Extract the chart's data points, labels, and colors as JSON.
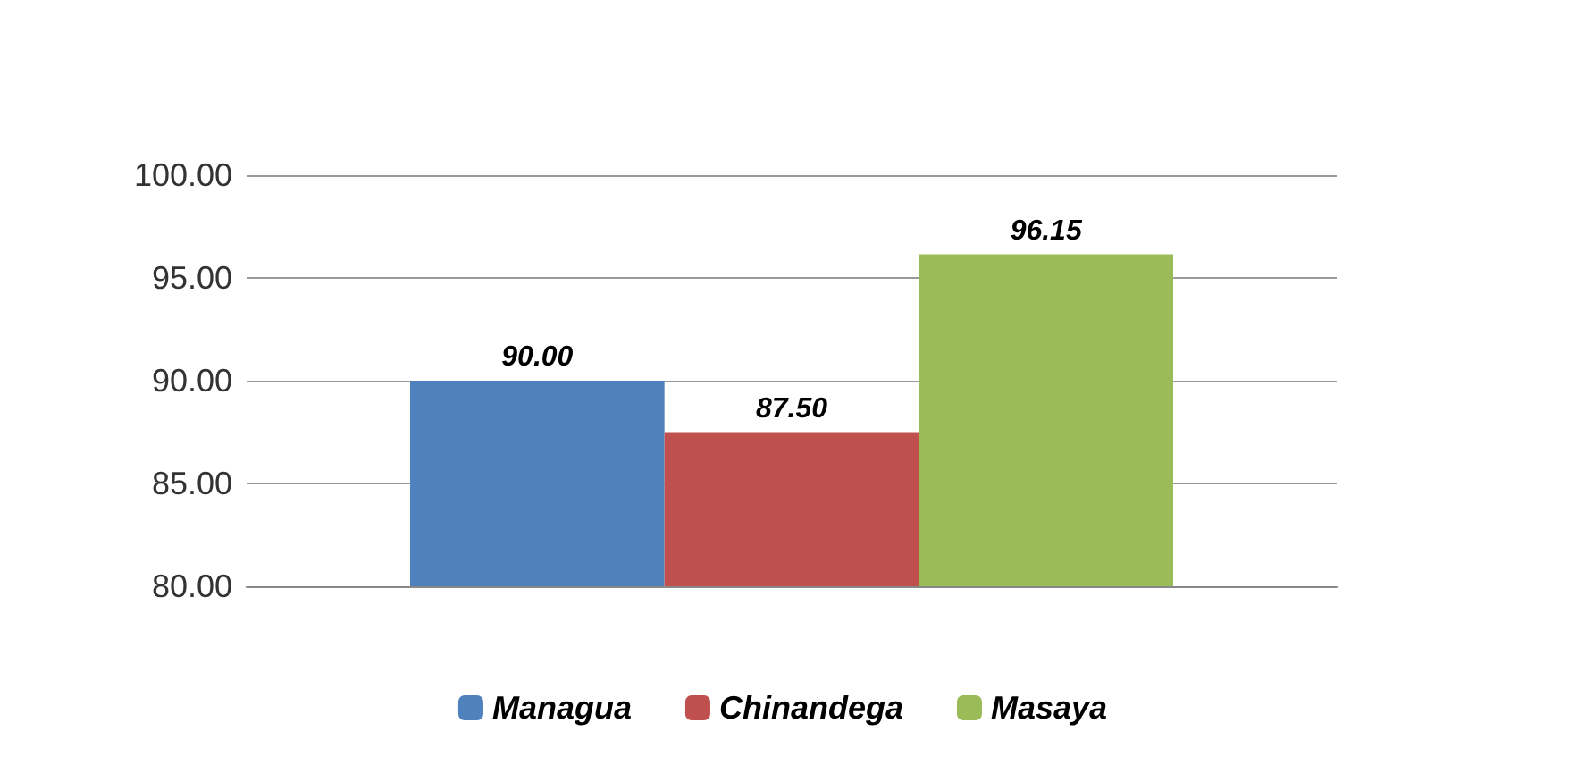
{
  "chart_data": {
    "type": "bar",
    "categories": [
      null
    ],
    "series": [
      {
        "name": "Managua",
        "color": "#4f81bd",
        "values": [
          90.0
        ],
        "value_labels": [
          "90.00"
        ]
      },
      {
        "name": "Chinandega",
        "color": "#c0504d",
        "values": [
          87.5
        ],
        "value_labels": [
          "87.50"
        ]
      },
      {
        "name": "Masaya",
        "color": "#9bbb59",
        "values": [
          96.15
        ],
        "value_labels": [
          "96.15"
        ]
      }
    ],
    "ylim": [
      80,
      100
    ],
    "yticks": [
      {
        "value": 80,
        "label": "80.00"
      },
      {
        "value": 85,
        "label": "85.00"
      },
      {
        "value": 90,
        "label": "90.00"
      },
      {
        "value": 95,
        "label": "95.00"
      },
      {
        "value": 100,
        "label": "100.00"
      }
    ],
    "grid": true,
    "legend": "bottom"
  }
}
